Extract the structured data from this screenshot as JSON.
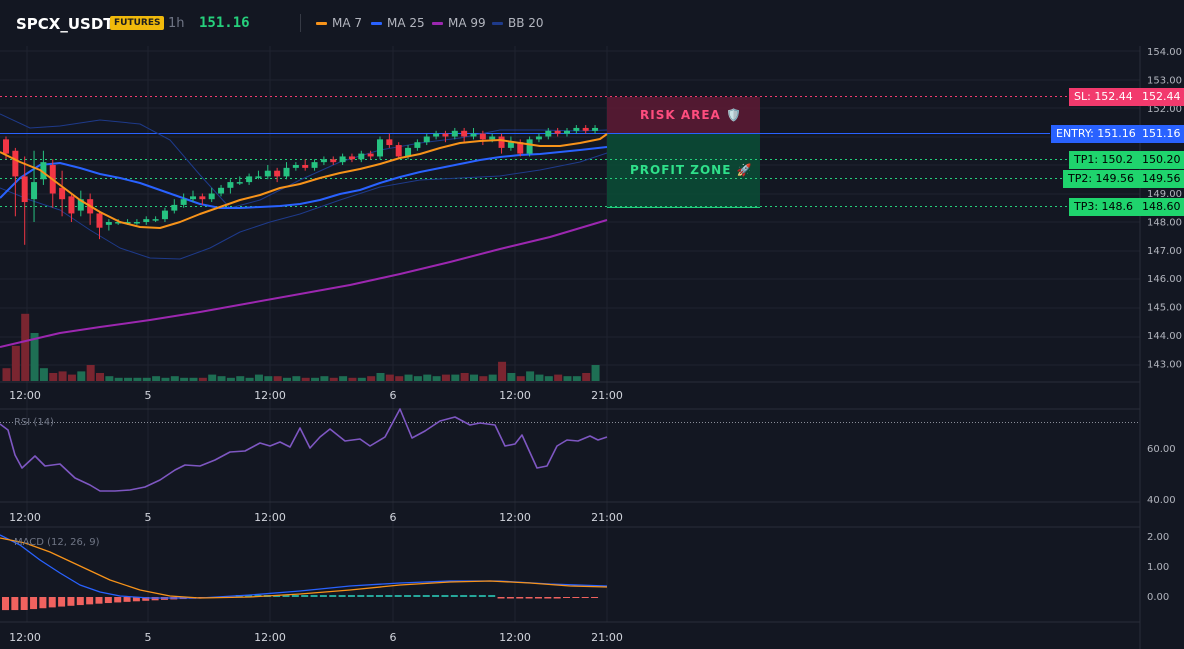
{
  "header": {
    "symbol": "SPCX_USDT",
    "badge": "FUTURES",
    "timeframe": "1h",
    "price": "151.16"
  },
  "legend": [
    {
      "label": "MA 7",
      "color": "#f7931a"
    },
    {
      "label": "MA 25",
      "color": "#2962ff"
    },
    {
      "label": "MA 99",
      "color": "#9c27b0"
    },
    {
      "label": "BB 20",
      "color": "#1e3a8a"
    }
  ],
  "main_axis": {
    "ticks": [
      "154.00",
      "153.00",
      "152.00",
      "151.00",
      "150.00",
      "149.00",
      "148.00",
      "147.00",
      "146.00",
      "145.00",
      "144.00",
      "143.00"
    ]
  },
  "x_axis": {
    "ticks": [
      "12:00",
      "5",
      "12:00",
      "6",
      "12:00",
      "21:00"
    ]
  },
  "levels": {
    "sl": {
      "label": "SL: 152.44",
      "value": "152.44"
    },
    "entry": {
      "label": "ENTRY: 151.16",
      "value": "151.16"
    },
    "tp1": {
      "label": "TP1: 150.2",
      "value": "150.20"
    },
    "tp2": {
      "label": "TP2: 149.56",
      "value": "149.56"
    },
    "tp3": {
      "label": "TP3: 148.6",
      "value": "148.60"
    }
  },
  "zones": {
    "risk": "RISK AREA 🛡️",
    "profit": "PROFIT ZONE 🚀"
  },
  "rsi": {
    "title": "RSI (14)",
    "ticks": [
      "60.00",
      "40.00"
    ]
  },
  "macd": {
    "title": "MACD (12, 26, 9)",
    "ticks": [
      "2.00",
      "1.00",
      "0.00"
    ]
  },
  "colors": {
    "up": "#26c281",
    "down": "#f23645",
    "ma7": "#f7931a",
    "ma25": "#2962ff",
    "ma99": "#9c27b0",
    "bb": "#1e3a8a",
    "rsi": "#7e57c2",
    "macd": "#2962ff",
    "signal": "#f7931a"
  }
}
